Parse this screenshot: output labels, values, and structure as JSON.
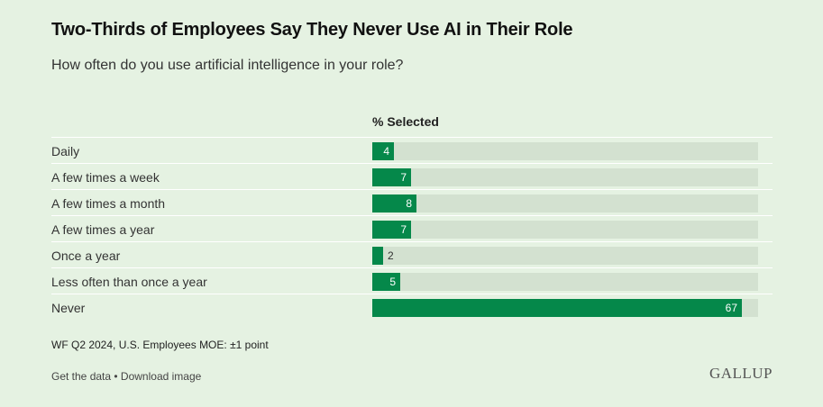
{
  "chart_data": {
    "type": "bar",
    "orientation": "horizontal",
    "title": "Two-Thirds of Employees Say They Never Use AI in Their Role",
    "subtitle": "How often do you use artificial intelligence in your role?",
    "column_header": "% Selected",
    "categories": [
      "Daily",
      "A few times a week",
      "A few times a month",
      "A few times a year",
      "Once a year",
      "Less often than once a year",
      "Never"
    ],
    "values": [
      4,
      7,
      8,
      7,
      2,
      5,
      67
    ],
    "xlim": [
      0,
      70
    ],
    "bar_color": "#05884a",
    "track_color": "#d3e1d0"
  },
  "note": "WF Q2 2024, U.S. Employees MOE: ±1 point",
  "footer": {
    "get_data": "Get the data",
    "separator": " • ",
    "download": "Download image",
    "logo": "GALLUP"
  }
}
